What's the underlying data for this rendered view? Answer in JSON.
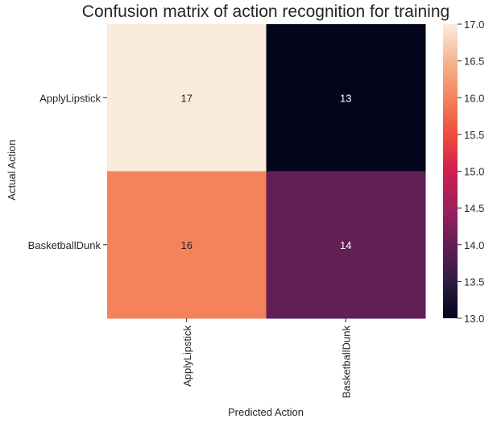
{
  "chart_data": {
    "type": "heatmap",
    "title": "Confusion matrix of action recognition for training",
    "xlabel": "Predicted Action",
    "ylabel": "Actual Action",
    "x_categories": [
      "ApplyLipstick",
      "BasketballDunk"
    ],
    "y_categories": [
      "ApplyLipstick",
      "BasketballDunk"
    ],
    "values": [
      [
        17,
        13
      ],
      [
        16,
        14
      ]
    ],
    "cell_labels": [
      [
        "17",
        "13"
      ],
      [
        "16",
        "14"
      ]
    ],
    "colormap": "rocket",
    "colorbar": {
      "range": [
        13.0,
        17.0
      ],
      "ticks": [
        13.0,
        13.5,
        14.0,
        14.5,
        15.0,
        15.5,
        16.0,
        16.5,
        17.0
      ],
      "tick_labels": [
        "13.0",
        "13.5",
        "14.0",
        "14.5",
        "15.0",
        "15.5",
        "16.0",
        "16.5",
        "17.0"
      ]
    },
    "grid": false
  }
}
